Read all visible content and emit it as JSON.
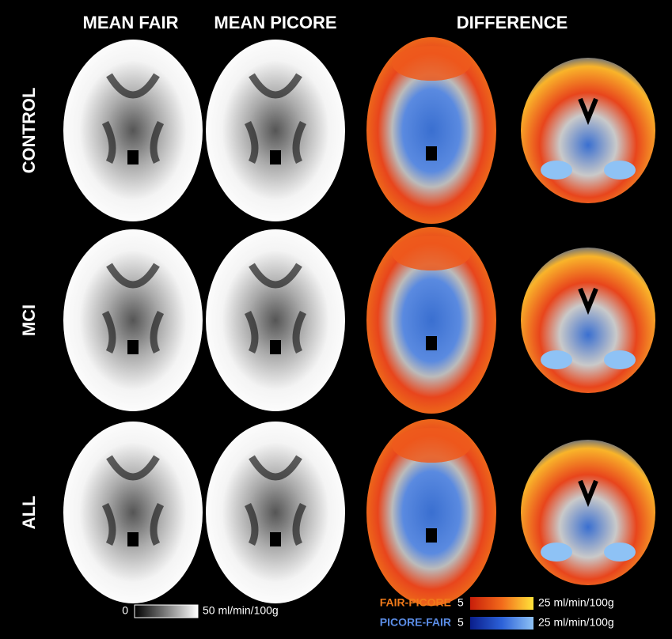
{
  "headers": [
    "MEAN FAIR",
    "MEAN PICORE",
    "DIFFERENCE"
  ],
  "rows": [
    "CONTROL",
    "MCI",
    "ALL"
  ],
  "gray_scale": {
    "min": "0",
    "max": "50 ml/min/100g"
  },
  "legend": [
    {
      "name": "FAIR-PICORE",
      "min": "5",
      "max": "25 ml/min/100g"
    },
    {
      "name": "PICORE-FAIR",
      "min": "5",
      "max": "25 ml/min/100g"
    }
  ]
}
